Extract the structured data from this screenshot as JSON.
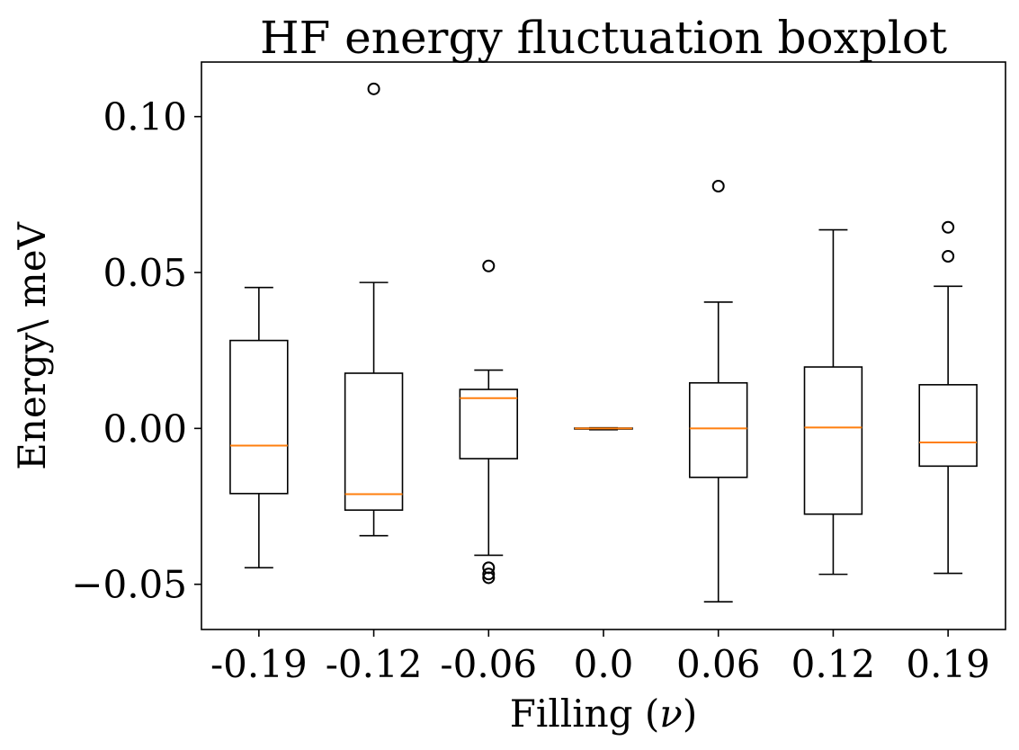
{
  "chart_data": {
    "type": "boxplot",
    "title": "HF energy fluctuation boxplot",
    "xlabel": "Filling (",
    "xlabel_symbol": "ν",
    "xlabel_suffix": ")",
    "ylabel": "Energy\\ meV",
    "categories": [
      "-0.19",
      "-0.12",
      "-0.06",
      "0.0",
      "0.06",
      "0.12",
      "0.19"
    ],
    "ylim": [
      -0.0645,
      0.1175
    ],
    "yticks": [
      0.1,
      0.05,
      0.0,
      -0.05
    ],
    "ytick_labels": [
      "0.10",
      "0.05",
      "0.00",
      "−0.05"
    ],
    "grid": false,
    "colors": {
      "box": "#000000",
      "median": "#ff7f0e",
      "flier": "#000000"
    },
    "boxes": [
      {
        "whisker_low": -0.0447,
        "q1": -0.0209,
        "median": -0.0055,
        "q3": 0.0282,
        "whisker_high": 0.0452,
        "fliers": []
      },
      {
        "whisker_low": -0.0344,
        "q1": -0.0262,
        "median": -0.0211,
        "q3": 0.0177,
        "whisker_high": 0.0468,
        "fliers": [
          0.1089
        ]
      },
      {
        "whisker_low": -0.0407,
        "q1": -0.0097,
        "median": 0.0097,
        "q3": 0.0125,
        "whisker_high": 0.0187,
        "fliers": [
          0.0521,
          -0.0447,
          -0.0467,
          -0.0479
        ]
      },
      {
        "whisker_low": -0.0004,
        "q1": -0.0002,
        "median": 0.0,
        "q3": 0.0001,
        "whisker_high": 0.0002,
        "fliers": []
      },
      {
        "whisker_low": -0.0556,
        "q1": -0.0157,
        "median": 0.0,
        "q3": 0.0146,
        "whisker_high": 0.0405,
        "fliers": [
          0.0777
        ]
      },
      {
        "whisker_low": -0.0468,
        "q1": -0.0275,
        "median": 0.0003,
        "q3": 0.0197,
        "whisker_high": 0.0637,
        "fliers": []
      },
      {
        "whisker_low": -0.0465,
        "q1": -0.0121,
        "median": -0.0045,
        "q3": 0.014,
        "whisker_high": 0.0456,
        "fliers": [
          0.0645,
          0.0552
        ]
      }
    ]
  }
}
